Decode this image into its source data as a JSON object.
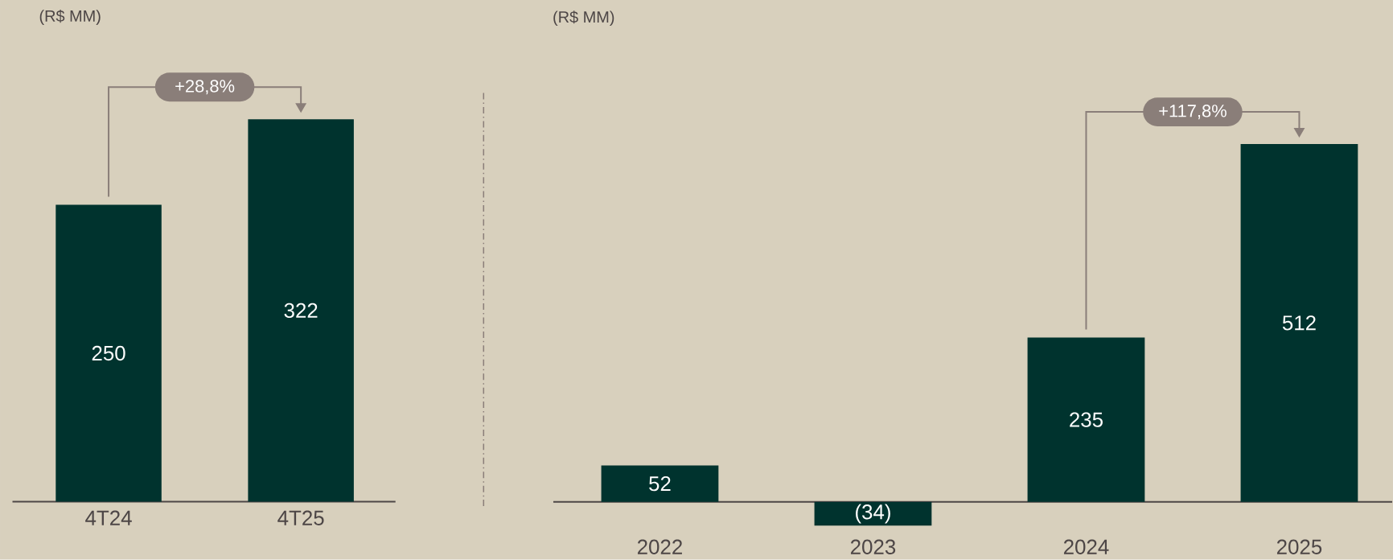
{
  "chart_data": [
    {
      "type": "bar",
      "ylabel": "(R$ MM)",
      "categories": [
        "4T24",
        "4T25"
      ],
      "values": [
        250,
        322
      ],
      "color": "#00332e",
      "data_labels": true,
      "annotations": [
        "+28,8%"
      ]
    },
    {
      "type": "bar",
      "ylabel": "(R$ MM)",
      "categories": [
        "2022",
        "2023",
        "2024",
        "2025"
      ],
      "values": [
        52,
        -34,
        235,
        512
      ],
      "value_labels": [
        "52",
        "(34)",
        "235",
        "512"
      ],
      "color": "#00332e",
      "annotations": [
        "+117,8%"
      ]
    }
  ]
}
